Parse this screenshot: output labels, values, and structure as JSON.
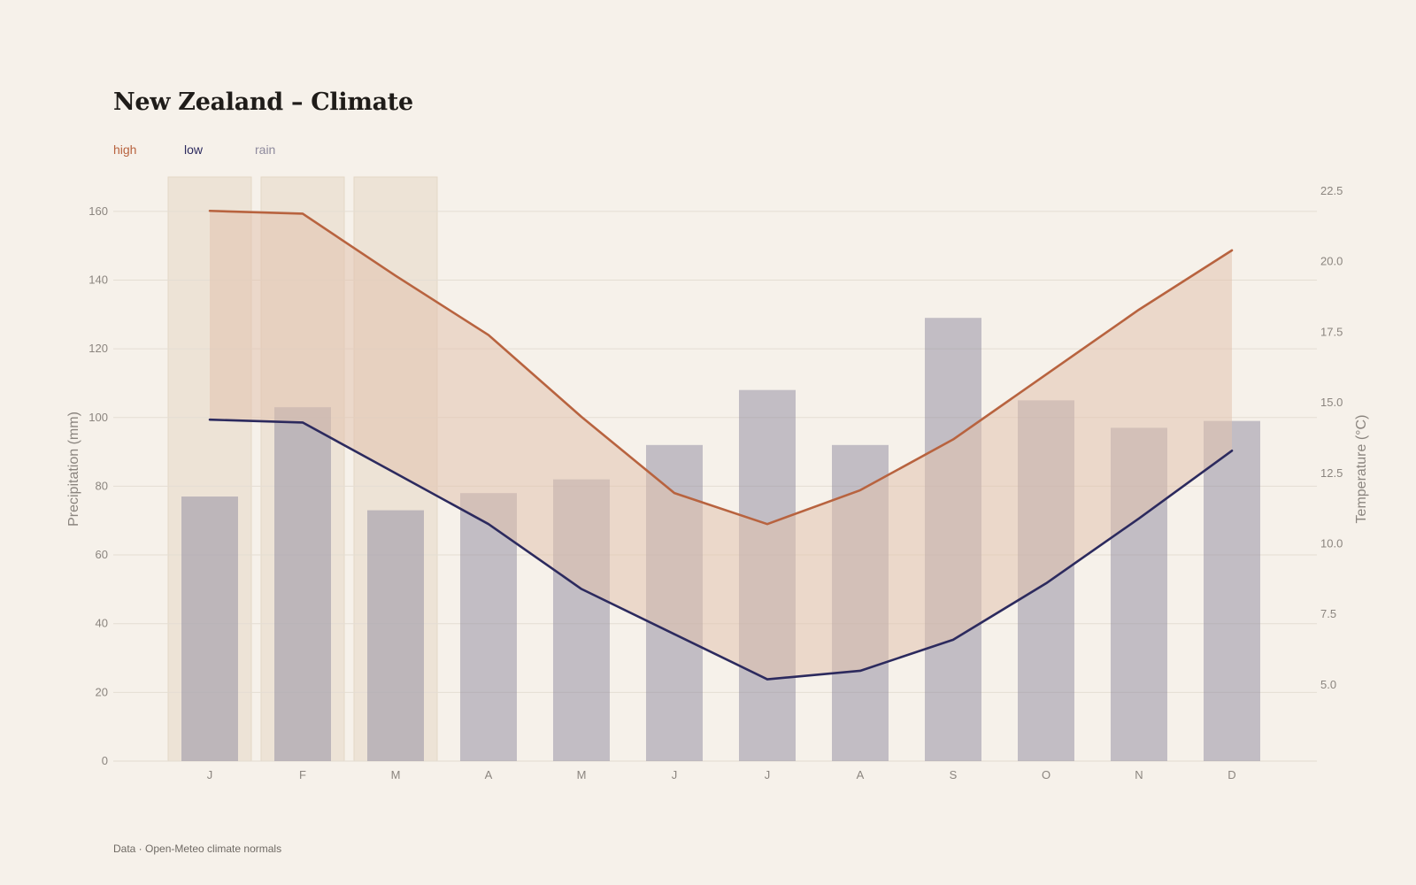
{
  "title": "New Zealand – Climate",
  "legend": {
    "high": "high",
    "low": "low",
    "rain": "rain"
  },
  "source": "Data · Open-Meteo climate normals",
  "colors": {
    "background": "#f6f1ea",
    "high": "#b8633f",
    "low": "#2c2a5e",
    "rain": "#8e8a9d",
    "band": "#e2c3ae",
    "highlight": "#ede3d6"
  },
  "chart_data": {
    "type": "bar",
    "categories": [
      "J",
      "F",
      "M",
      "A",
      "M",
      "J",
      "J",
      "A",
      "S",
      "O",
      "N",
      "D"
    ],
    "highlighted_categories": [
      0,
      1,
      2
    ],
    "series": [
      {
        "name": "rain",
        "type": "bar",
        "axis": "left",
        "values": [
          77,
          103,
          73,
          78,
          82,
          92,
          108,
          92,
          129,
          105,
          97,
          99
        ]
      },
      {
        "name": "high",
        "type": "line",
        "axis": "right",
        "values": [
          21.8,
          21.7,
          19.5,
          17.4,
          14.5,
          11.8,
          10.7,
          11.9,
          13.7,
          16.0,
          18.3,
          20.4
        ]
      },
      {
        "name": "low",
        "type": "line",
        "axis": "right",
        "values": [
          14.4,
          14.3,
          12.5,
          10.7,
          8.4,
          6.8,
          5.2,
          5.5,
          6.6,
          8.6,
          10.9,
          13.3
        ]
      }
    ],
    "ylabel": "Precipitation (mm)",
    "y2label": "Temperature (°C)",
    "ylim": [
      0,
      170
    ],
    "y2lim": [
      2.3,
      23.0
    ],
    "yticks": [
      "0",
      "20",
      "40",
      "60",
      "80",
      "100",
      "120",
      "140",
      "160"
    ],
    "y2ticks": [
      "5.0",
      "7.5",
      "10.0",
      "12.5",
      "15.0",
      "17.5",
      "20.0",
      "22.5"
    ],
    "grid": true,
    "legend_position": "top-left"
  }
}
